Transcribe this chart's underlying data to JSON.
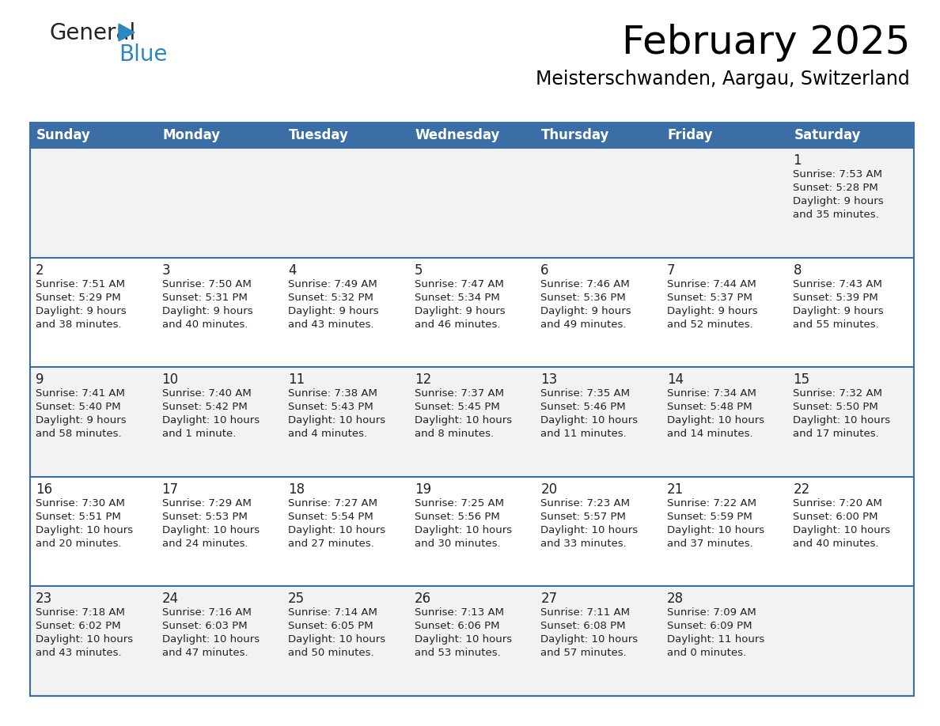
{
  "title": "February 2025",
  "subtitle": "Meisterschwanden, Aargau, Switzerland",
  "header_bg_color": "#3a6ea5",
  "header_text_color": "#ffffff",
  "row_bg_color_light": "#f2f2f2",
  "row_bg_color_white": "#ffffff",
  "divider_color": "#3a6ea5",
  "text_color": "#222222",
  "days_of_week": [
    "Sunday",
    "Monday",
    "Tuesday",
    "Wednesday",
    "Thursday",
    "Friday",
    "Saturday"
  ],
  "logo_general_color": "#222222",
  "logo_blue_color": "#2e86c1",
  "logo_triangle_color": "#2e86c1",
  "calendar_data": [
    [
      {
        "day": "",
        "info": ""
      },
      {
        "day": "",
        "info": ""
      },
      {
        "day": "",
        "info": ""
      },
      {
        "day": "",
        "info": ""
      },
      {
        "day": "",
        "info": ""
      },
      {
        "day": "",
        "info": ""
      },
      {
        "day": "1",
        "info": "Sunrise: 7:53 AM\nSunset: 5:28 PM\nDaylight: 9 hours\nand 35 minutes."
      }
    ],
    [
      {
        "day": "2",
        "info": "Sunrise: 7:51 AM\nSunset: 5:29 PM\nDaylight: 9 hours\nand 38 minutes."
      },
      {
        "day": "3",
        "info": "Sunrise: 7:50 AM\nSunset: 5:31 PM\nDaylight: 9 hours\nand 40 minutes."
      },
      {
        "day": "4",
        "info": "Sunrise: 7:49 AM\nSunset: 5:32 PM\nDaylight: 9 hours\nand 43 minutes."
      },
      {
        "day": "5",
        "info": "Sunrise: 7:47 AM\nSunset: 5:34 PM\nDaylight: 9 hours\nand 46 minutes."
      },
      {
        "day": "6",
        "info": "Sunrise: 7:46 AM\nSunset: 5:36 PM\nDaylight: 9 hours\nand 49 minutes."
      },
      {
        "day": "7",
        "info": "Sunrise: 7:44 AM\nSunset: 5:37 PM\nDaylight: 9 hours\nand 52 minutes."
      },
      {
        "day": "8",
        "info": "Sunrise: 7:43 AM\nSunset: 5:39 PM\nDaylight: 9 hours\nand 55 minutes."
      }
    ],
    [
      {
        "day": "9",
        "info": "Sunrise: 7:41 AM\nSunset: 5:40 PM\nDaylight: 9 hours\nand 58 minutes."
      },
      {
        "day": "10",
        "info": "Sunrise: 7:40 AM\nSunset: 5:42 PM\nDaylight: 10 hours\nand 1 minute."
      },
      {
        "day": "11",
        "info": "Sunrise: 7:38 AM\nSunset: 5:43 PM\nDaylight: 10 hours\nand 4 minutes."
      },
      {
        "day": "12",
        "info": "Sunrise: 7:37 AM\nSunset: 5:45 PM\nDaylight: 10 hours\nand 8 minutes."
      },
      {
        "day": "13",
        "info": "Sunrise: 7:35 AM\nSunset: 5:46 PM\nDaylight: 10 hours\nand 11 minutes."
      },
      {
        "day": "14",
        "info": "Sunrise: 7:34 AM\nSunset: 5:48 PM\nDaylight: 10 hours\nand 14 minutes."
      },
      {
        "day": "15",
        "info": "Sunrise: 7:32 AM\nSunset: 5:50 PM\nDaylight: 10 hours\nand 17 minutes."
      }
    ],
    [
      {
        "day": "16",
        "info": "Sunrise: 7:30 AM\nSunset: 5:51 PM\nDaylight: 10 hours\nand 20 minutes."
      },
      {
        "day": "17",
        "info": "Sunrise: 7:29 AM\nSunset: 5:53 PM\nDaylight: 10 hours\nand 24 minutes."
      },
      {
        "day": "18",
        "info": "Sunrise: 7:27 AM\nSunset: 5:54 PM\nDaylight: 10 hours\nand 27 minutes."
      },
      {
        "day": "19",
        "info": "Sunrise: 7:25 AM\nSunset: 5:56 PM\nDaylight: 10 hours\nand 30 minutes."
      },
      {
        "day": "20",
        "info": "Sunrise: 7:23 AM\nSunset: 5:57 PM\nDaylight: 10 hours\nand 33 minutes."
      },
      {
        "day": "21",
        "info": "Sunrise: 7:22 AM\nSunset: 5:59 PM\nDaylight: 10 hours\nand 37 minutes."
      },
      {
        "day": "22",
        "info": "Sunrise: 7:20 AM\nSunset: 6:00 PM\nDaylight: 10 hours\nand 40 minutes."
      }
    ],
    [
      {
        "day": "23",
        "info": "Sunrise: 7:18 AM\nSunset: 6:02 PM\nDaylight: 10 hours\nand 43 minutes."
      },
      {
        "day": "24",
        "info": "Sunrise: 7:16 AM\nSunset: 6:03 PM\nDaylight: 10 hours\nand 47 minutes."
      },
      {
        "day": "25",
        "info": "Sunrise: 7:14 AM\nSunset: 6:05 PM\nDaylight: 10 hours\nand 50 minutes."
      },
      {
        "day": "26",
        "info": "Sunrise: 7:13 AM\nSunset: 6:06 PM\nDaylight: 10 hours\nand 53 minutes."
      },
      {
        "day": "27",
        "info": "Sunrise: 7:11 AM\nSunset: 6:08 PM\nDaylight: 10 hours\nand 57 minutes."
      },
      {
        "day": "28",
        "info": "Sunrise: 7:09 AM\nSunset: 6:09 PM\nDaylight: 11 hours\nand 0 minutes."
      },
      {
        "day": "",
        "info": ""
      }
    ]
  ]
}
